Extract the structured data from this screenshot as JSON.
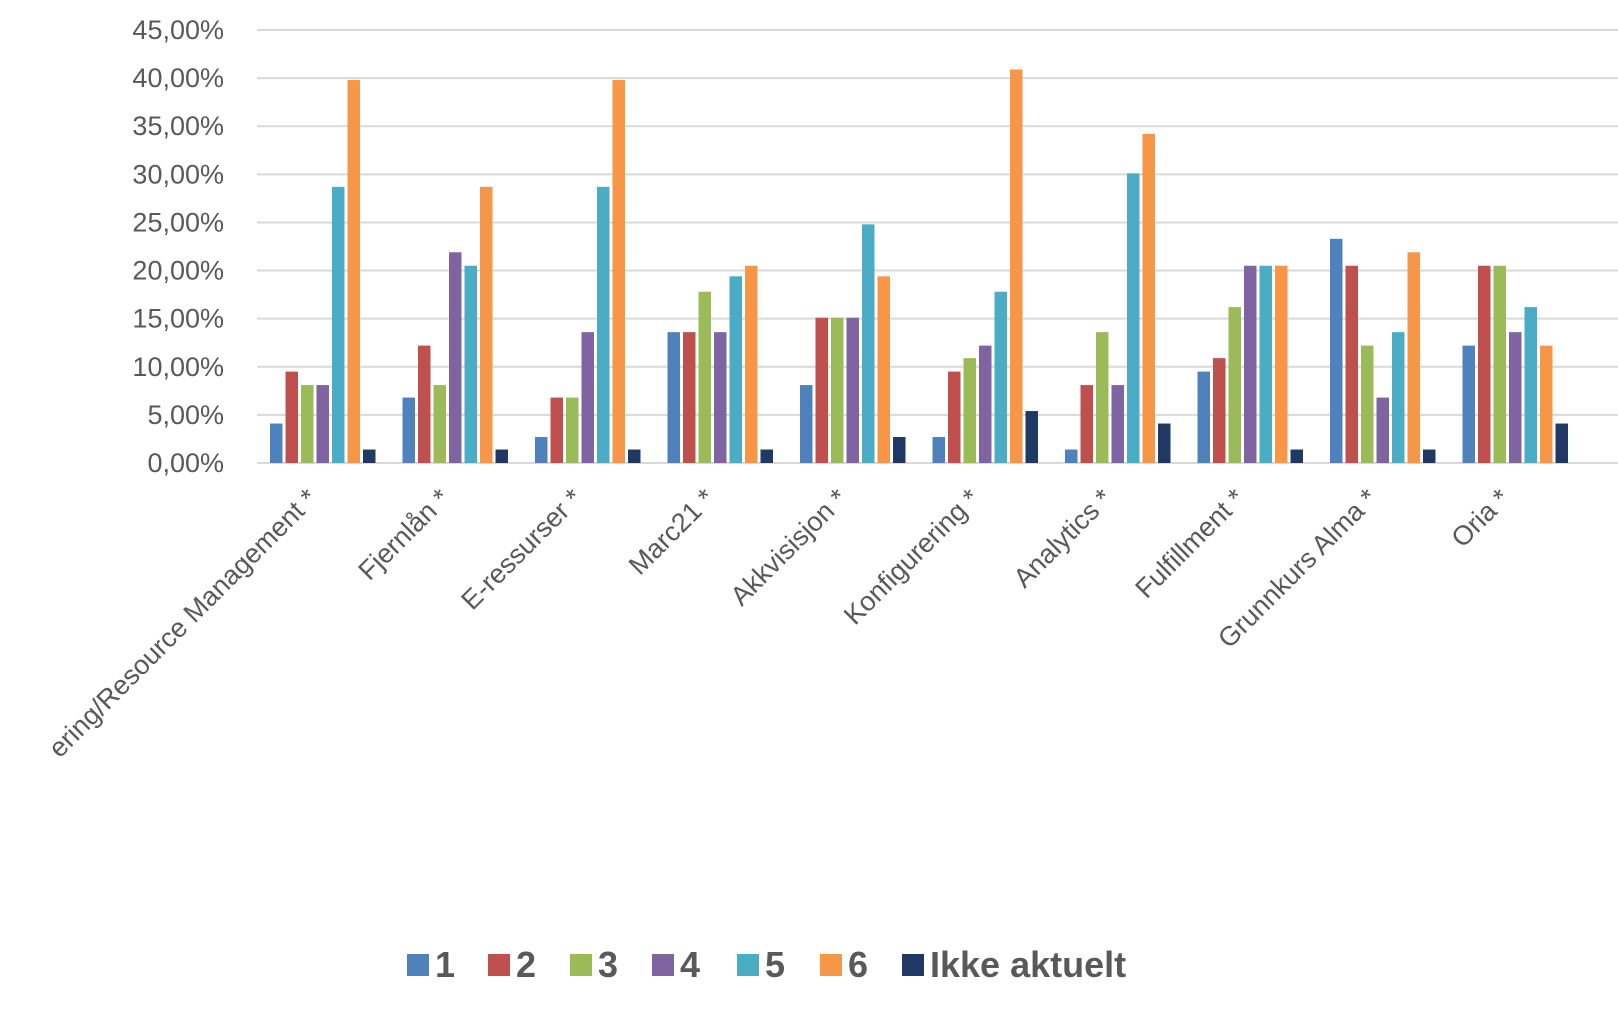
{
  "chart_data": {
    "type": "bar",
    "title": "",
    "xlabel": "",
    "ylabel": "",
    "ylim": [
      0,
      45
    ],
    "y_tick_values": [
      0,
      5,
      10,
      15,
      20,
      25,
      30,
      35,
      40,
      45
    ],
    "y_tick_labels": [
      "0,00%",
      "5,00%",
      "10,00%",
      "15,00%",
      "20,00%",
      "25,00%",
      "30,00%",
      "35,00%",
      "40,00%",
      "45,00%"
    ],
    "grid": true,
    "legend_position": "bottom",
    "categories": [
      "ering/Resource Management *",
      "Fjernlån *",
      "E-ressurser *",
      "Marc21 *",
      "Akkvisisjon *",
      "Konfigurering *",
      "Analytics *",
      "Fulfillment *",
      "Grunnkurs Alma *",
      "Oria *"
    ],
    "series": [
      {
        "name": "1",
        "color": "#4f81bd",
        "values": [
          4.1,
          6.8,
          2.7,
          13.6,
          8.1,
          2.7,
          1.4,
          9.5,
          23.3,
          12.2
        ]
      },
      {
        "name": "2",
        "color": "#c0504d",
        "values": [
          9.5,
          12.2,
          6.8,
          13.6,
          15.1,
          9.5,
          8.1,
          10.9,
          20.5,
          20.5
        ]
      },
      {
        "name": "3",
        "color": "#9bbb59",
        "values": [
          8.1,
          8.1,
          6.8,
          17.8,
          15.1,
          10.9,
          13.6,
          16.2,
          12.2,
          20.5
        ]
      },
      {
        "name": "4",
        "color": "#8064a2",
        "values": [
          8.1,
          21.9,
          13.6,
          13.6,
          15.1,
          12.2,
          8.1,
          20.5,
          6.8,
          13.6
        ]
      },
      {
        "name": "5",
        "color": "#4bacc6",
        "values": [
          28.7,
          20.5,
          28.7,
          19.4,
          24.8,
          17.8,
          30.1,
          20.5,
          13.6,
          16.2
        ]
      },
      {
        "name": "6",
        "color": "#f79646",
        "values": [
          39.8,
          28.7,
          39.8,
          20.5,
          19.4,
          40.9,
          34.2,
          20.5,
          21.9,
          12.2
        ]
      },
      {
        "name": "Ikke aktuelt",
        "color": "#1f3864",
        "values": [
          1.4,
          1.4,
          1.4,
          1.4,
          2.7,
          5.4,
          4.1,
          1.4,
          1.4,
          4.1
        ]
      }
    ]
  }
}
